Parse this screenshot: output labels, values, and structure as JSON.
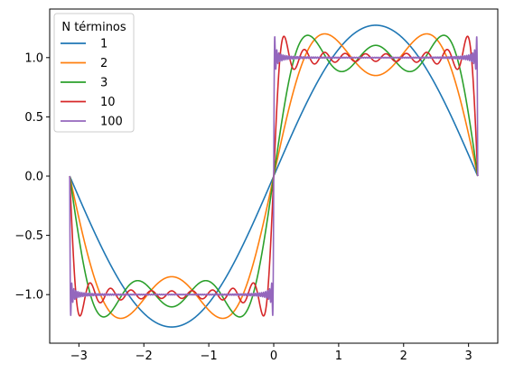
{
  "chart_data": {
    "type": "line",
    "title": "",
    "xlabel": "",
    "ylabel": "",
    "xlim": [
      -3.45,
      3.45
    ],
    "ylim": [
      -1.41,
      1.41
    ],
    "xticks": [
      -3,
      -2,
      -1,
      0,
      1,
      2,
      3
    ],
    "xtick_labels": [
      "−3",
      "−2",
      "−1",
      "0",
      "1",
      "2",
      "3"
    ],
    "yticks": [
      -1.0,
      -0.5,
      0.0,
      0.5,
      1.0
    ],
    "ytick_labels": [
      "−1.0",
      "−0.5",
      "0.0",
      "0.5",
      "1.0"
    ],
    "grid": false,
    "legend": {
      "title": "N términos",
      "position": "top-left",
      "entries": [
        "1",
        "2",
        "3",
        "10",
        "100"
      ]
    },
    "series": [
      {
        "name": "1",
        "terms": 1,
        "color": "#1f77b4"
      },
      {
        "name": "2",
        "terms": 2,
        "color": "#ff7f0e"
      },
      {
        "name": "3",
        "terms": 3,
        "color": "#2ca02c"
      },
      {
        "name": "10",
        "terms": 10,
        "color": "#d62728"
      },
      {
        "name": "100",
        "terms": 100,
        "color": "#9467bd"
      }
    ],
    "x_domain": [
      -3.14159,
      3.14159
    ],
    "function": "Fourier series of square wave: (4/π) Σ_{k=1..N} sin((2k−1)x)/(2k−1)"
  }
}
